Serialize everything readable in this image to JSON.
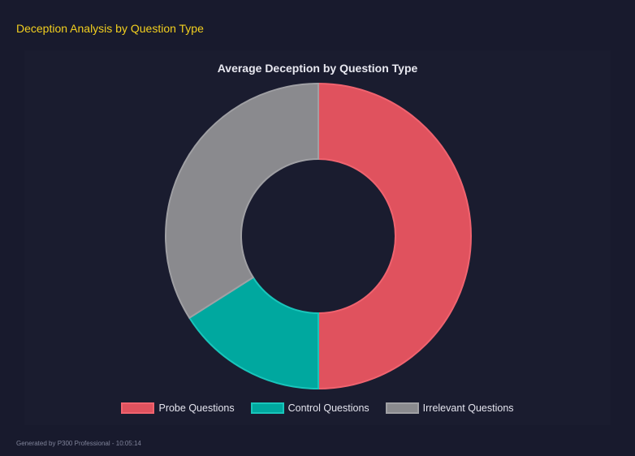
{
  "header": {
    "title": "Deception Analysis by Question Type"
  },
  "chart_data": {
    "type": "pie",
    "variant": "doughnut",
    "title": "Average Deception by Question Type",
    "categories": [
      "Probe Questions",
      "Control Questions",
      "Irrelevant Questions"
    ],
    "values": [
      50,
      16,
      34
    ],
    "colors": [
      "#e0525e",
      "#00a89f",
      "#8a8a8e"
    ],
    "border_colors": [
      "#f0636f",
      "#19c5bb",
      "#a0a0a4"
    ],
    "legend": "bottom"
  },
  "footer": {
    "text": "Generated by P300 Professional - 10:05:14"
  }
}
